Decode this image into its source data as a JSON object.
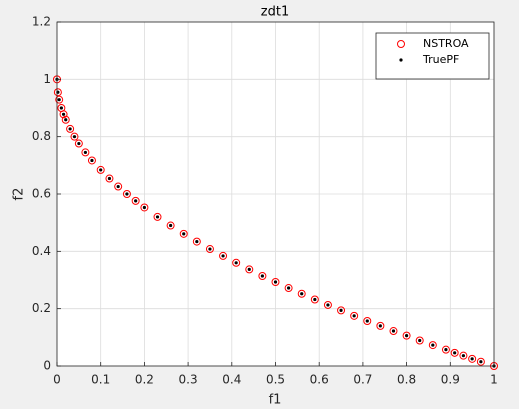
{
  "chart_data": {
    "type": "scatter",
    "title": "zdt1",
    "x_label": "f1",
    "y_label": "f2",
    "xlim": [
      0,
      1
    ],
    "ylim": [
      0,
      1.2
    ],
    "xticks": [
      0,
      0.1,
      0.2,
      0.3,
      0.4,
      0.5,
      0.6,
      0.7,
      0.8,
      0.9,
      1
    ],
    "yticks": [
      0,
      0.2,
      0.4,
      0.6,
      0.8,
      1,
      1.2
    ],
    "grid": true,
    "legend": "northeast",
    "series": [
      {
        "name": "NSTROA",
        "color": "#ff0000",
        "marker": "circle",
        "x": [
          0,
          0.002,
          0.005,
          0.01,
          0.015,
          0.02,
          0.03,
          0.04,
          0.05,
          0.065,
          0.08,
          0.1,
          0.12,
          0.14,
          0.16,
          0.18,
          0.2,
          0.23,
          0.26,
          0.29,
          0.32,
          0.35,
          0.38,
          0.41,
          0.44,
          0.47,
          0.5,
          0.53,
          0.56,
          0.59,
          0.62,
          0.65,
          0.68,
          0.71,
          0.74,
          0.77,
          0.8,
          0.83,
          0.86,
          0.89,
          0.91,
          0.93,
          0.95,
          0.97,
          1
        ],
        "y": [
          1,
          0.955,
          0.929,
          0.9,
          0.878,
          0.859,
          0.827,
          0.8,
          0.776,
          0.745,
          0.717,
          0.684,
          0.654,
          0.626,
          0.6,
          0.576,
          0.553,
          0.52,
          0.49,
          0.461,
          0.434,
          0.408,
          0.384,
          0.36,
          0.337,
          0.314,
          0.293,
          0.272,
          0.252,
          0.232,
          0.213,
          0.194,
          0.175,
          0.157,
          0.14,
          0.122,
          0.106,
          0.089,
          0.073,
          0.057,
          0.046,
          0.036,
          0.025,
          0.015,
          0
        ]
      },
      {
        "name": "TruePF",
        "color": "#000000",
        "marker": "dot",
        "x": [
          0,
          0.002,
          0.005,
          0.01,
          0.015,
          0.02,
          0.03,
          0.04,
          0.05,
          0.065,
          0.08,
          0.1,
          0.12,
          0.14,
          0.16,
          0.18,
          0.2,
          0.23,
          0.26,
          0.29,
          0.32,
          0.35,
          0.38,
          0.41,
          0.44,
          0.47,
          0.5,
          0.53,
          0.56,
          0.59,
          0.62,
          0.65,
          0.68,
          0.71,
          0.74,
          0.77,
          0.8,
          0.83,
          0.86,
          0.89,
          0.91,
          0.93,
          0.95,
          0.97,
          1
        ],
        "y": [
          1,
          0.955,
          0.929,
          0.9,
          0.878,
          0.859,
          0.827,
          0.8,
          0.776,
          0.745,
          0.717,
          0.684,
          0.654,
          0.626,
          0.6,
          0.576,
          0.553,
          0.52,
          0.49,
          0.461,
          0.434,
          0.408,
          0.384,
          0.36,
          0.337,
          0.314,
          0.293,
          0.272,
          0.252,
          0.232,
          0.213,
          0.194,
          0.175,
          0.157,
          0.14,
          0.122,
          0.106,
          0.089,
          0.073,
          0.057,
          0.046,
          0.036,
          0.025,
          0.015,
          0
        ]
      }
    ]
  }
}
